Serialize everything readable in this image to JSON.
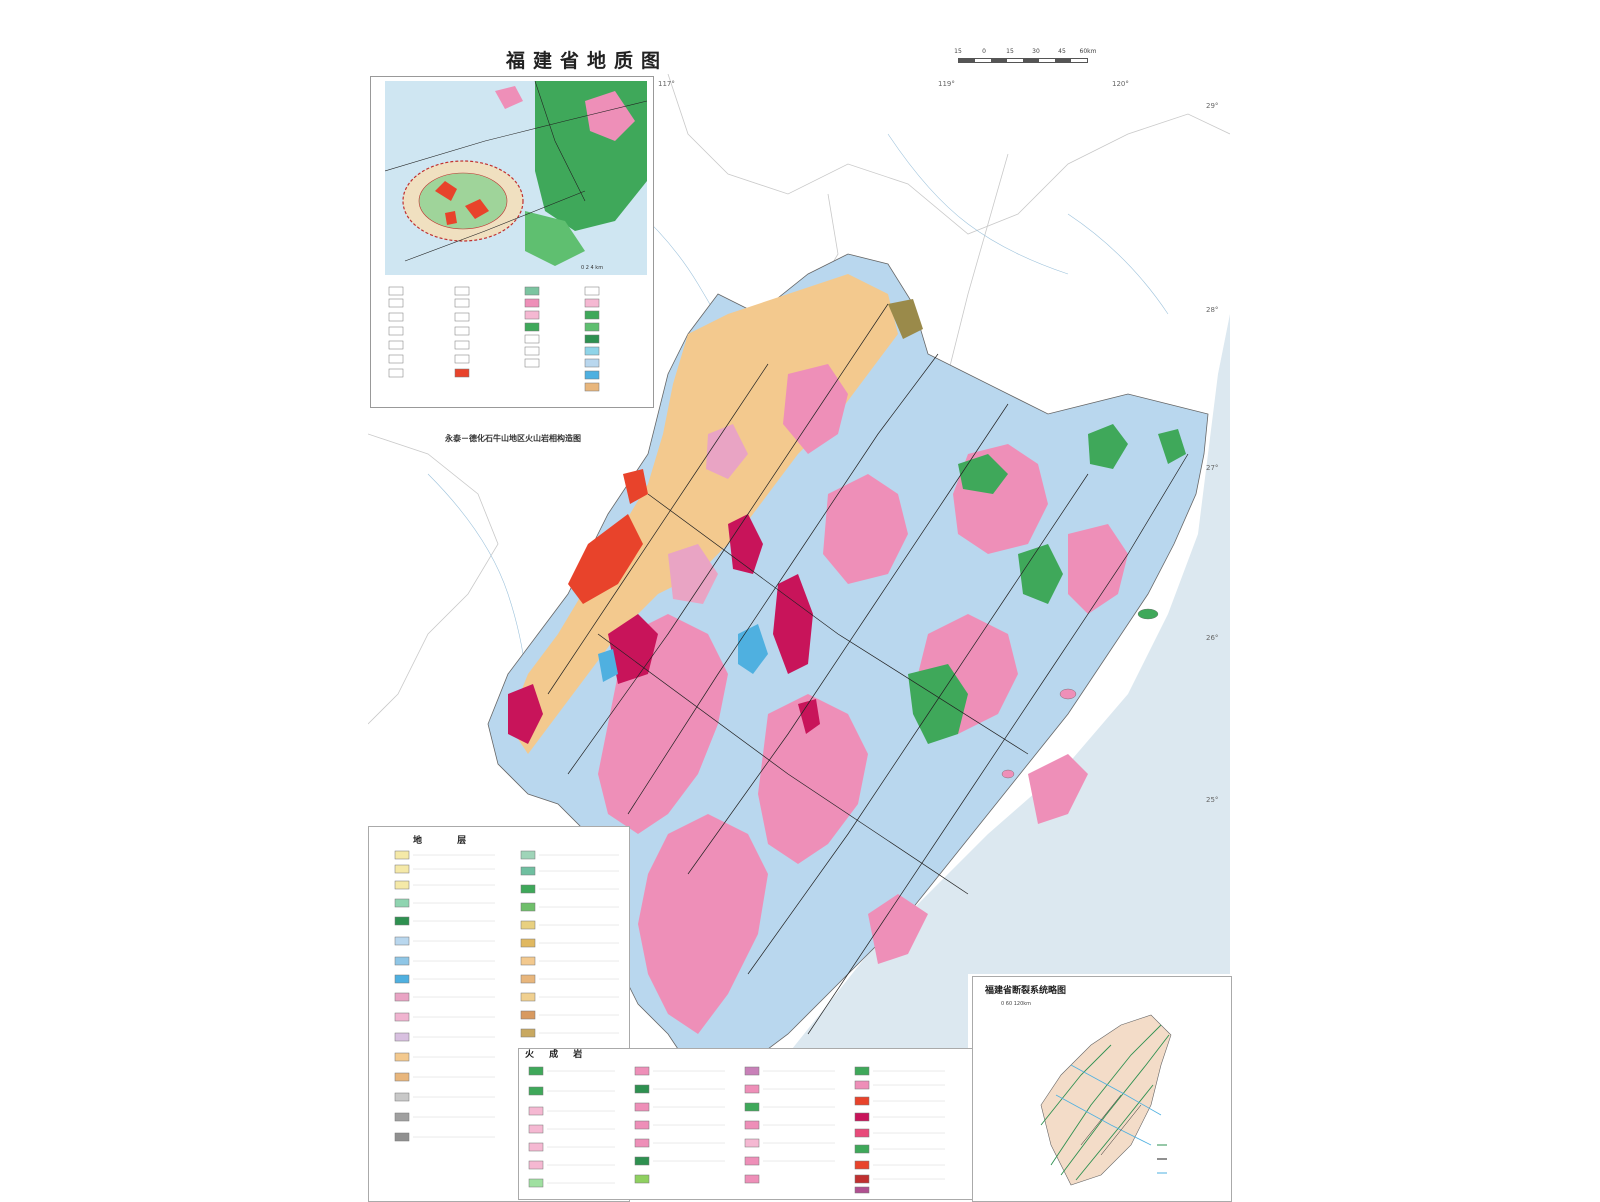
{
  "map": {
    "title": "福建省地质图",
    "scale_labels": [
      "15",
      "0",
      "15",
      "30",
      "45",
      "60km"
    ],
    "longitudes": [
      "117°",
      "119°",
      "120°"
    ],
    "latitudes": [
      "29°",
      "28°",
      "27°",
      "26°",
      "25°"
    ]
  },
  "inset": {
    "caption": "永泰－德化石牛山地区火山岩相构造图",
    "scale": "0  2  4 km"
  },
  "legend": {
    "strata_heading": "地 层",
    "igneous_heading": "火 成 岩"
  },
  "fault_inset": {
    "title": "福建省断裂系统略图",
    "scale": "0  60  120km"
  },
  "colors": {
    "quaternary": "#f5e9a8",
    "cretaceous": "#b9d7ee",
    "jurassic": "#f3c98e",
    "granite": "#ee8fb8",
    "granite_dense": "#c8145a",
    "paleozoic": "#3fa85a",
    "triassic": "#e9a4c4",
    "devonian": "#e8b67c",
    "volcanic_red": "#e8432b",
    "sea": "#dce8f0",
    "land_outside": "#ffffff"
  }
}
